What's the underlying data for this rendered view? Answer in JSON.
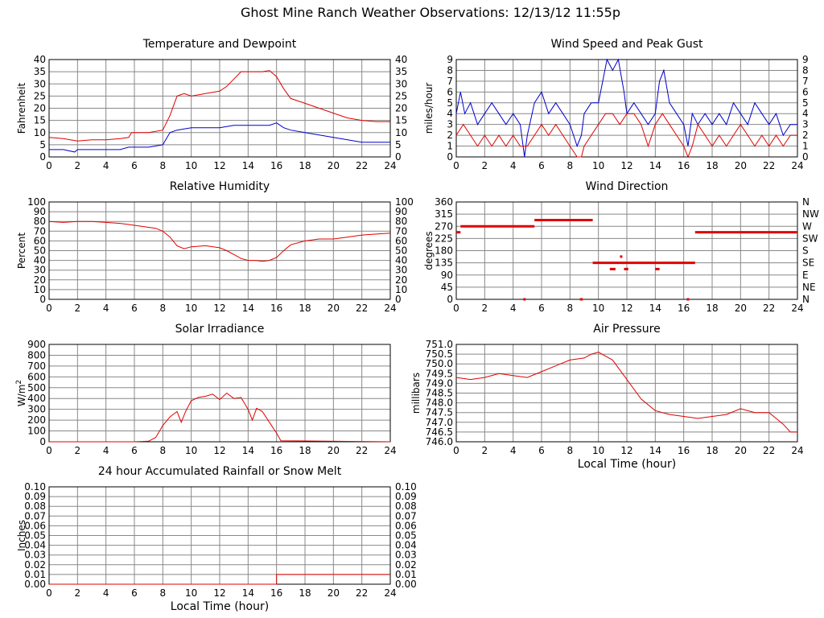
{
  "page_title": "Ghost Mine Ranch Weather Observations: 12/13/12 11:55p",
  "colors": {
    "red": "#e00000",
    "blue": "#0000cc",
    "grid": "#888888",
    "axis": "#000000"
  },
  "chart_data": [
    {
      "id": "temp",
      "type": "line",
      "title": "Temperature and Dewpoint",
      "ylabel": "Fahrenheit",
      "xlabel": "",
      "xlim": [
        0,
        24
      ],
      "ylim": [
        0,
        40
      ],
      "x_ticks": [
        "0",
        "2",
        "4",
        "6",
        "8",
        "10",
        "12",
        "14",
        "16",
        "18",
        "20",
        "22",
        "24"
      ],
      "y_ticks": [
        "0",
        "5",
        "10",
        "15",
        "20",
        "25",
        "30",
        "35",
        "40"
      ],
      "right_ticks": [
        "0",
        "5",
        "10",
        "15",
        "20",
        "25",
        "30",
        "35",
        "40"
      ],
      "grid": true,
      "series": [
        {
          "color": "#e00000",
          "x": [
            0,
            1,
            2,
            3,
            4,
            5,
            5.6,
            5.8,
            6,
            7,
            8,
            8.5,
            9,
            9.5,
            10,
            11,
            12,
            12.5,
            13,
            13.5,
            14,
            14.5,
            15,
            15.5,
            16,
            16.5,
            17,
            18,
            19,
            20,
            21,
            22,
            23,
            24
          ],
          "y": [
            8,
            7.5,
            6.5,
            7,
            7,
            7.5,
            8,
            10,
            10,
            10,
            11,
            17,
            25,
            26,
            25,
            26,
            27,
            29,
            32,
            35,
            35,
            35,
            35,
            35.5,
            33,
            28,
            24,
            22,
            20,
            18,
            16,
            15,
            14.5,
            14.5
          ]
        },
        {
          "color": "#0000cc",
          "x": [
            0,
            1,
            1.8,
            2,
            3,
            4,
            5,
            5.6,
            6,
            7,
            8,
            8.5,
            9,
            10,
            11,
            12,
            13,
            14,
            15,
            15.5,
            16,
            16.5,
            17,
            18,
            19,
            20,
            21,
            22,
            23,
            24
          ],
          "y": [
            3,
            3,
            2,
            3,
            3,
            3,
            3,
            4,
            4,
            4,
            5,
            10,
            11,
            12,
            12,
            12,
            13,
            13,
            13,
            13,
            14,
            12,
            11,
            10,
            9,
            8,
            7,
            6,
            6,
            6
          ]
        }
      ]
    },
    {
      "id": "wind",
      "type": "line",
      "title": "Wind Speed and Peak Gust",
      "ylabel": "miles/hour",
      "xlabel": "",
      "xlim": [
        0,
        24
      ],
      "ylim": [
        0,
        9
      ],
      "x_ticks": [
        "0",
        "2",
        "4",
        "6",
        "8",
        "10",
        "12",
        "14",
        "16",
        "18",
        "20",
        "22",
        "24"
      ],
      "y_ticks": [
        "0",
        "1",
        "2",
        "3",
        "4",
        "5",
        "6",
        "7",
        "8",
        "9"
      ],
      "right_ticks": [
        "0",
        "1",
        "2",
        "3",
        "4",
        "5",
        "6",
        "7",
        "8",
        "9"
      ],
      "grid": true,
      "series": [
        {
          "color": "#0000cc",
          "x": [
            0,
            0.3,
            0.6,
            1,
            1.5,
            2,
            2.5,
            3,
            3.5,
            4,
            4.5,
            4.8,
            5,
            5.5,
            6,
            6.5,
            7,
            7.5,
            8,
            8.5,
            8.8,
            9,
            9.5,
            10,
            10.3,
            10.6,
            11,
            11.4,
            11.8,
            12,
            12.5,
            13,
            13.5,
            14,
            14.3,
            14.6,
            15,
            15.5,
            16,
            16.3,
            16.6,
            17,
            17.5,
            18,
            18.5,
            19,
            19.5,
            20,
            20.5,
            21,
            21.5,
            22,
            22.5,
            23,
            23.5,
            24
          ],
          "y": [
            4,
            6,
            4,
            5,
            3,
            4,
            5,
            4,
            3,
            4,
            3,
            0,
            2,
            5,
            6,
            4,
            5,
            4,
            3,
            1,
            2,
            4,
            5,
            5,
            7,
            9,
            8,
            9,
            6,
            4,
            5,
            4,
            3,
            4,
            7,
            8,
            5,
            4,
            3,
            1,
            4,
            3,
            4,
            3,
            4,
            3,
            5,
            4,
            3,
            5,
            4,
            3,
            4,
            2,
            3,
            3
          ]
        },
        {
          "color": "#e00000",
          "x": [
            0,
            0.5,
            1,
            1.5,
            2,
            2.5,
            3,
            3.5,
            4,
            4.5,
            5,
            5.5,
            6,
            6.5,
            7,
            7.5,
            8,
            8.5,
            8.8,
            9,
            9.5,
            10,
            10.5,
            11,
            11.5,
            12,
            12.5,
            13,
            13.5,
            14,
            14.5,
            15,
            15.5,
            16,
            16.3,
            16.6,
            17,
            17.5,
            18,
            18.5,
            19,
            19.5,
            20,
            20.5,
            21,
            21.5,
            22,
            22.5,
            23,
            23.5,
            24
          ],
          "y": [
            2,
            3,
            2,
            1,
            2,
            1,
            2,
            1,
            2,
            1,
            1,
            2,
            3,
            2,
            3,
            2,
            1,
            0,
            0,
            1,
            2,
            3,
            4,
            4,
            3,
            4,
            4,
            3,
            1,
            3,
            4,
            3,
            2,
            1,
            0,
            1,
            3,
            2,
            1,
            2,
            1,
            2,
            3,
            2,
            1,
            2,
            1,
            2,
            1,
            2,
            2
          ]
        }
      ]
    },
    {
      "id": "humidity",
      "type": "line",
      "title": "Relative Humidity",
      "ylabel": "Percent",
      "xlabel": "",
      "xlim": [
        0,
        24
      ],
      "ylim": [
        0,
        100
      ],
      "x_ticks": [
        "0",
        "2",
        "4",
        "6",
        "8",
        "10",
        "12",
        "14",
        "16",
        "18",
        "20",
        "22",
        "24"
      ],
      "y_ticks": [
        "0",
        "10",
        "20",
        "30",
        "40",
        "50",
        "60",
        "70",
        "80",
        "90",
        "100"
      ],
      "right_ticks": [
        "0",
        "10",
        "20",
        "30",
        "40",
        "50",
        "60",
        "70",
        "80",
        "90",
        "100"
      ],
      "grid": true,
      "series": [
        {
          "color": "#e00000",
          "x": [
            0,
            1,
            2,
            3,
            4,
            5,
            5.5,
            6,
            7,
            7.5,
            8,
            8.5,
            9,
            9.5,
            10,
            11,
            12,
            12.5,
            13,
            13.5,
            14,
            14.5,
            15,
            15.5,
            16,
            16.5,
            17,
            18,
            19,
            20,
            21,
            22,
            23,
            24
          ],
          "y": [
            80,
            79,
            80,
            80,
            79,
            78,
            77,
            76,
            74,
            73,
            70,
            64,
            55,
            52,
            54,
            55,
            53,
            50,
            46,
            42,
            40,
            40,
            39,
            40,
            43,
            50,
            56,
            60,
            62,
            62,
            64,
            66,
            67,
            68
          ]
        }
      ]
    },
    {
      "id": "direction",
      "type": "scatter",
      "title": "Wind Direction",
      "ylabel": "degrees",
      "xlabel": "",
      "xlim": [
        0,
        24
      ],
      "ylim": [
        0,
        360
      ],
      "x_ticks": [
        "0",
        "2",
        "4",
        "6",
        "8",
        "10",
        "12",
        "14",
        "16",
        "18",
        "20",
        "22",
        "24"
      ],
      "y_ticks": [
        "0",
        "45",
        "90",
        "135",
        "180",
        "225",
        "270",
        "315",
        "360"
      ],
      "right_ticks": [
        "N",
        "NE",
        "E",
        "SE",
        "S",
        "SW",
        "W",
        "NW",
        "N"
      ],
      "grid": true,
      "segments": [
        {
          "x0": 0,
          "x1": 0.3,
          "y": 248
        },
        {
          "x0": 0.3,
          "x1": 5.5,
          "y": 270
        },
        {
          "x0": 5.5,
          "x1": 9.6,
          "y": 293
        },
        {
          "x0": 9.6,
          "x1": 16.8,
          "y": 135
        },
        {
          "x0": 10.8,
          "x1": 11.2,
          "y": 112
        },
        {
          "x0": 11.8,
          "x1": 12.1,
          "y": 112
        },
        {
          "x0": 14,
          "x1": 14.3,
          "y": 112
        },
        {
          "x0": 8.7,
          "x1": 8.9,
          "y": 0
        },
        {
          "x0": 16.8,
          "x1": 24,
          "y": 248
        }
      ],
      "points": [
        {
          "x": 11.6,
          "y": 158
        },
        {
          "x": 4.8,
          "y": 0
        },
        {
          "x": 16.3,
          "y": 0
        }
      ]
    },
    {
      "id": "solar",
      "type": "line",
      "title": "Solar Irradiance",
      "ylabel": "W/m²",
      "xlabel": "",
      "xlim": [
        0,
        24
      ],
      "ylim": [
        0,
        900
      ],
      "x_ticks": [
        "0",
        "2",
        "4",
        "6",
        "8",
        "10",
        "12",
        "14",
        "16",
        "18",
        "20",
        "22",
        "24"
      ],
      "y_ticks": [
        "0",
        "100",
        "200",
        "300",
        "400",
        "500",
        "600",
        "700",
        "800",
        "900"
      ],
      "right_ticks": [],
      "grid": true,
      "series": [
        {
          "color": "#e00000",
          "x": [
            0,
            6,
            7,
            7.5,
            8,
            8.5,
            9,
            9.3,
            9.6,
            10,
            10.5,
            11,
            11.5,
            12,
            12.5,
            13,
            13.5,
            14,
            14.3,
            14.6,
            15,
            15.5,
            16,
            16.3,
            24
          ],
          "y": [
            0,
            0,
            5,
            40,
            150,
            230,
            280,
            180,
            280,
            380,
            410,
            420,
            440,
            390,
            450,
            400,
            410,
            300,
            200,
            310,
            280,
            180,
            80,
            10,
            0
          ]
        }
      ]
    },
    {
      "id": "pressure",
      "type": "line",
      "title": "Air Pressure",
      "ylabel": "millibars",
      "xlabel": "Local Time (hour)",
      "xlim": [
        0,
        24
      ],
      "ylim": [
        746.0,
        751.0
      ],
      "x_ticks": [
        "0",
        "2",
        "4",
        "6",
        "8",
        "10",
        "12",
        "14",
        "16",
        "18",
        "20",
        "22",
        "24"
      ],
      "y_ticks": [
        "746.0",
        "746.5",
        "747.0",
        "747.5",
        "748.0",
        "748.5",
        "749.0",
        "749.5",
        "750.0",
        "750.5",
        "751.0"
      ],
      "right_ticks": [],
      "grid": true,
      "series": [
        {
          "color": "#e00000",
          "x": [
            0,
            1,
            2,
            3,
            4,
            5,
            6,
            7,
            8,
            9,
            9.5,
            10,
            11,
            12,
            13,
            14,
            15,
            16,
            17,
            18,
            19,
            20,
            21,
            22,
            23,
            23.5,
            24
          ],
          "y": [
            749.3,
            749.2,
            749.3,
            749.5,
            749.4,
            749.3,
            749.6,
            749.9,
            750.2,
            750.3,
            750.5,
            750.6,
            750.2,
            749.2,
            748.2,
            747.6,
            747.4,
            747.3,
            747.2,
            747.3,
            747.4,
            747.7,
            747.5,
            747.5,
            746.9,
            746.5,
            746.5
          ]
        }
      ]
    },
    {
      "id": "rain",
      "type": "line",
      "title": "24 hour Accumulated Rainfall or Snow Melt",
      "ylabel": "Inches",
      "xlabel": "Local Time (hour)",
      "xlim": [
        0,
        24
      ],
      "ylim": [
        0,
        0.1
      ],
      "x_ticks": [
        "0",
        "2",
        "4",
        "6",
        "8",
        "10",
        "12",
        "14",
        "16",
        "18",
        "20",
        "22",
        "24"
      ],
      "y_ticks": [
        "0.00",
        "0.01",
        "0.02",
        "0.03",
        "0.04",
        "0.05",
        "0.06",
        "0.07",
        "0.08",
        "0.09",
        "0.10"
      ],
      "right_ticks": [
        "0.00",
        "0.01",
        "0.02",
        "0.03",
        "0.04",
        "0.05",
        "0.06",
        "0.07",
        "0.08",
        "0.09",
        "0.10"
      ],
      "grid": true,
      "series": [
        {
          "color": "#e00000",
          "x": [
            0,
            16,
            16,
            24
          ],
          "y": [
            0,
            0,
            0.01,
            0.01
          ]
        }
      ]
    }
  ]
}
